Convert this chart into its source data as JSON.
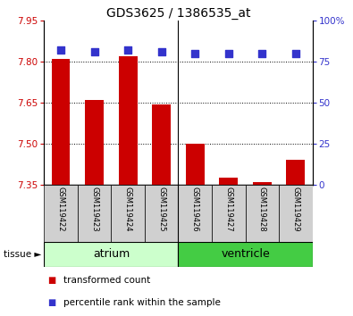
{
  "title": "GDS3625 / 1386535_at",
  "samples": [
    "GSM119422",
    "GSM119423",
    "GSM119424",
    "GSM119425",
    "GSM119426",
    "GSM119427",
    "GSM119428",
    "GSM119429"
  ],
  "transformed_count": [
    7.81,
    7.66,
    7.82,
    7.645,
    7.5,
    7.375,
    7.36,
    7.44
  ],
  "percentile_rank": [
    82,
    81,
    82,
    81,
    80,
    80,
    80,
    80
  ],
  "ylim_left": [
    7.35,
    7.95
  ],
  "ylim_right": [
    0,
    100
  ],
  "yticks_left": [
    7.35,
    7.5,
    7.65,
    7.8,
    7.95
  ],
  "yticks_right": [
    0,
    25,
    50,
    75,
    100
  ],
  "ytick_labels_right": [
    "0",
    "25",
    "50",
    "75",
    "100%"
  ],
  "bar_color": "#cc0000",
  "scatter_color": "#3333cc",
  "atrium_color": "#ccffcc",
  "ventricle_color": "#44cc44",
  "sample_box_color": "#d0d0d0",
  "legend_items": [
    {
      "label": "transformed count",
      "color": "#cc0000"
    },
    {
      "label": "percentile rank within the sample",
      "color": "#3333cc"
    }
  ],
  "bar_width": 0.55,
  "left_color": "#cc0000",
  "right_color": "#3333cc",
  "title_fontsize": 10,
  "tick_fontsize": 7.5,
  "sample_fontsize": 6,
  "tissue_fontsize": 9,
  "legend_fontsize": 7.5
}
